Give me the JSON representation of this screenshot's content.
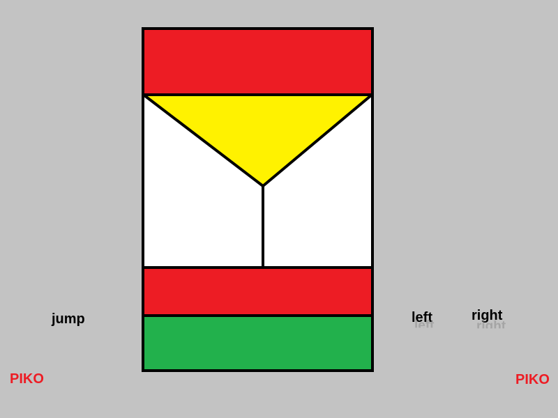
{
  "controls": {
    "jump_label": "jump",
    "left_label": "left",
    "right_label": "right"
  },
  "branding": {
    "left_text": "PIKO",
    "right_text": "PIKO"
  },
  "colors": {
    "background": "#c3c3c3",
    "red": "#ed1c24",
    "yellow": "#fff200",
    "green": "#22b14c",
    "white": "#ffffff",
    "outline": "#000000"
  }
}
